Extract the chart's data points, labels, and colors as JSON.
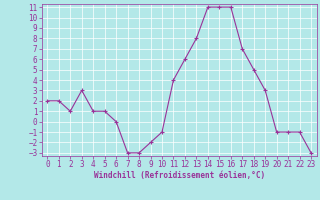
{
  "x": [
    0,
    1,
    2,
    3,
    4,
    5,
    6,
    7,
    8,
    9,
    10,
    11,
    12,
    13,
    14,
    15,
    16,
    17,
    18,
    19,
    20,
    21,
    22,
    23
  ],
  "y": [
    2,
    2,
    1,
    3,
    1,
    1,
    0,
    -3,
    -3,
    -2,
    -1,
    4,
    6,
    8,
    11,
    11,
    11,
    7,
    5,
    3,
    -1,
    -1,
    -1,
    -3
  ],
  "line_color": "#993399",
  "marker": "+",
  "marker_size": 3,
  "marker_color": "#993399",
  "bg_color": "#b3e8e8",
  "grid_color": "#ffffff",
  "xlabel": "Windchill (Refroidissement éolien,°C)",
  "xlabel_color": "#993399",
  "tick_color": "#993399",
  "ylim": [
    -3,
    11
  ],
  "xlim": [
    -0.5,
    23.5
  ],
  "yticks": [
    11,
    10,
    9,
    8,
    7,
    6,
    5,
    4,
    3,
    2,
    1,
    0,
    -1,
    -2,
    -3
  ],
  "xticks": [
    0,
    1,
    2,
    3,
    4,
    5,
    6,
    7,
    8,
    9,
    10,
    11,
    12,
    13,
    14,
    15,
    16,
    17,
    18,
    19,
    20,
    21,
    22,
    23
  ],
  "line_width": 0.8,
  "tick_fontsize": 5.5,
  "xlabel_fontsize": 5.5
}
